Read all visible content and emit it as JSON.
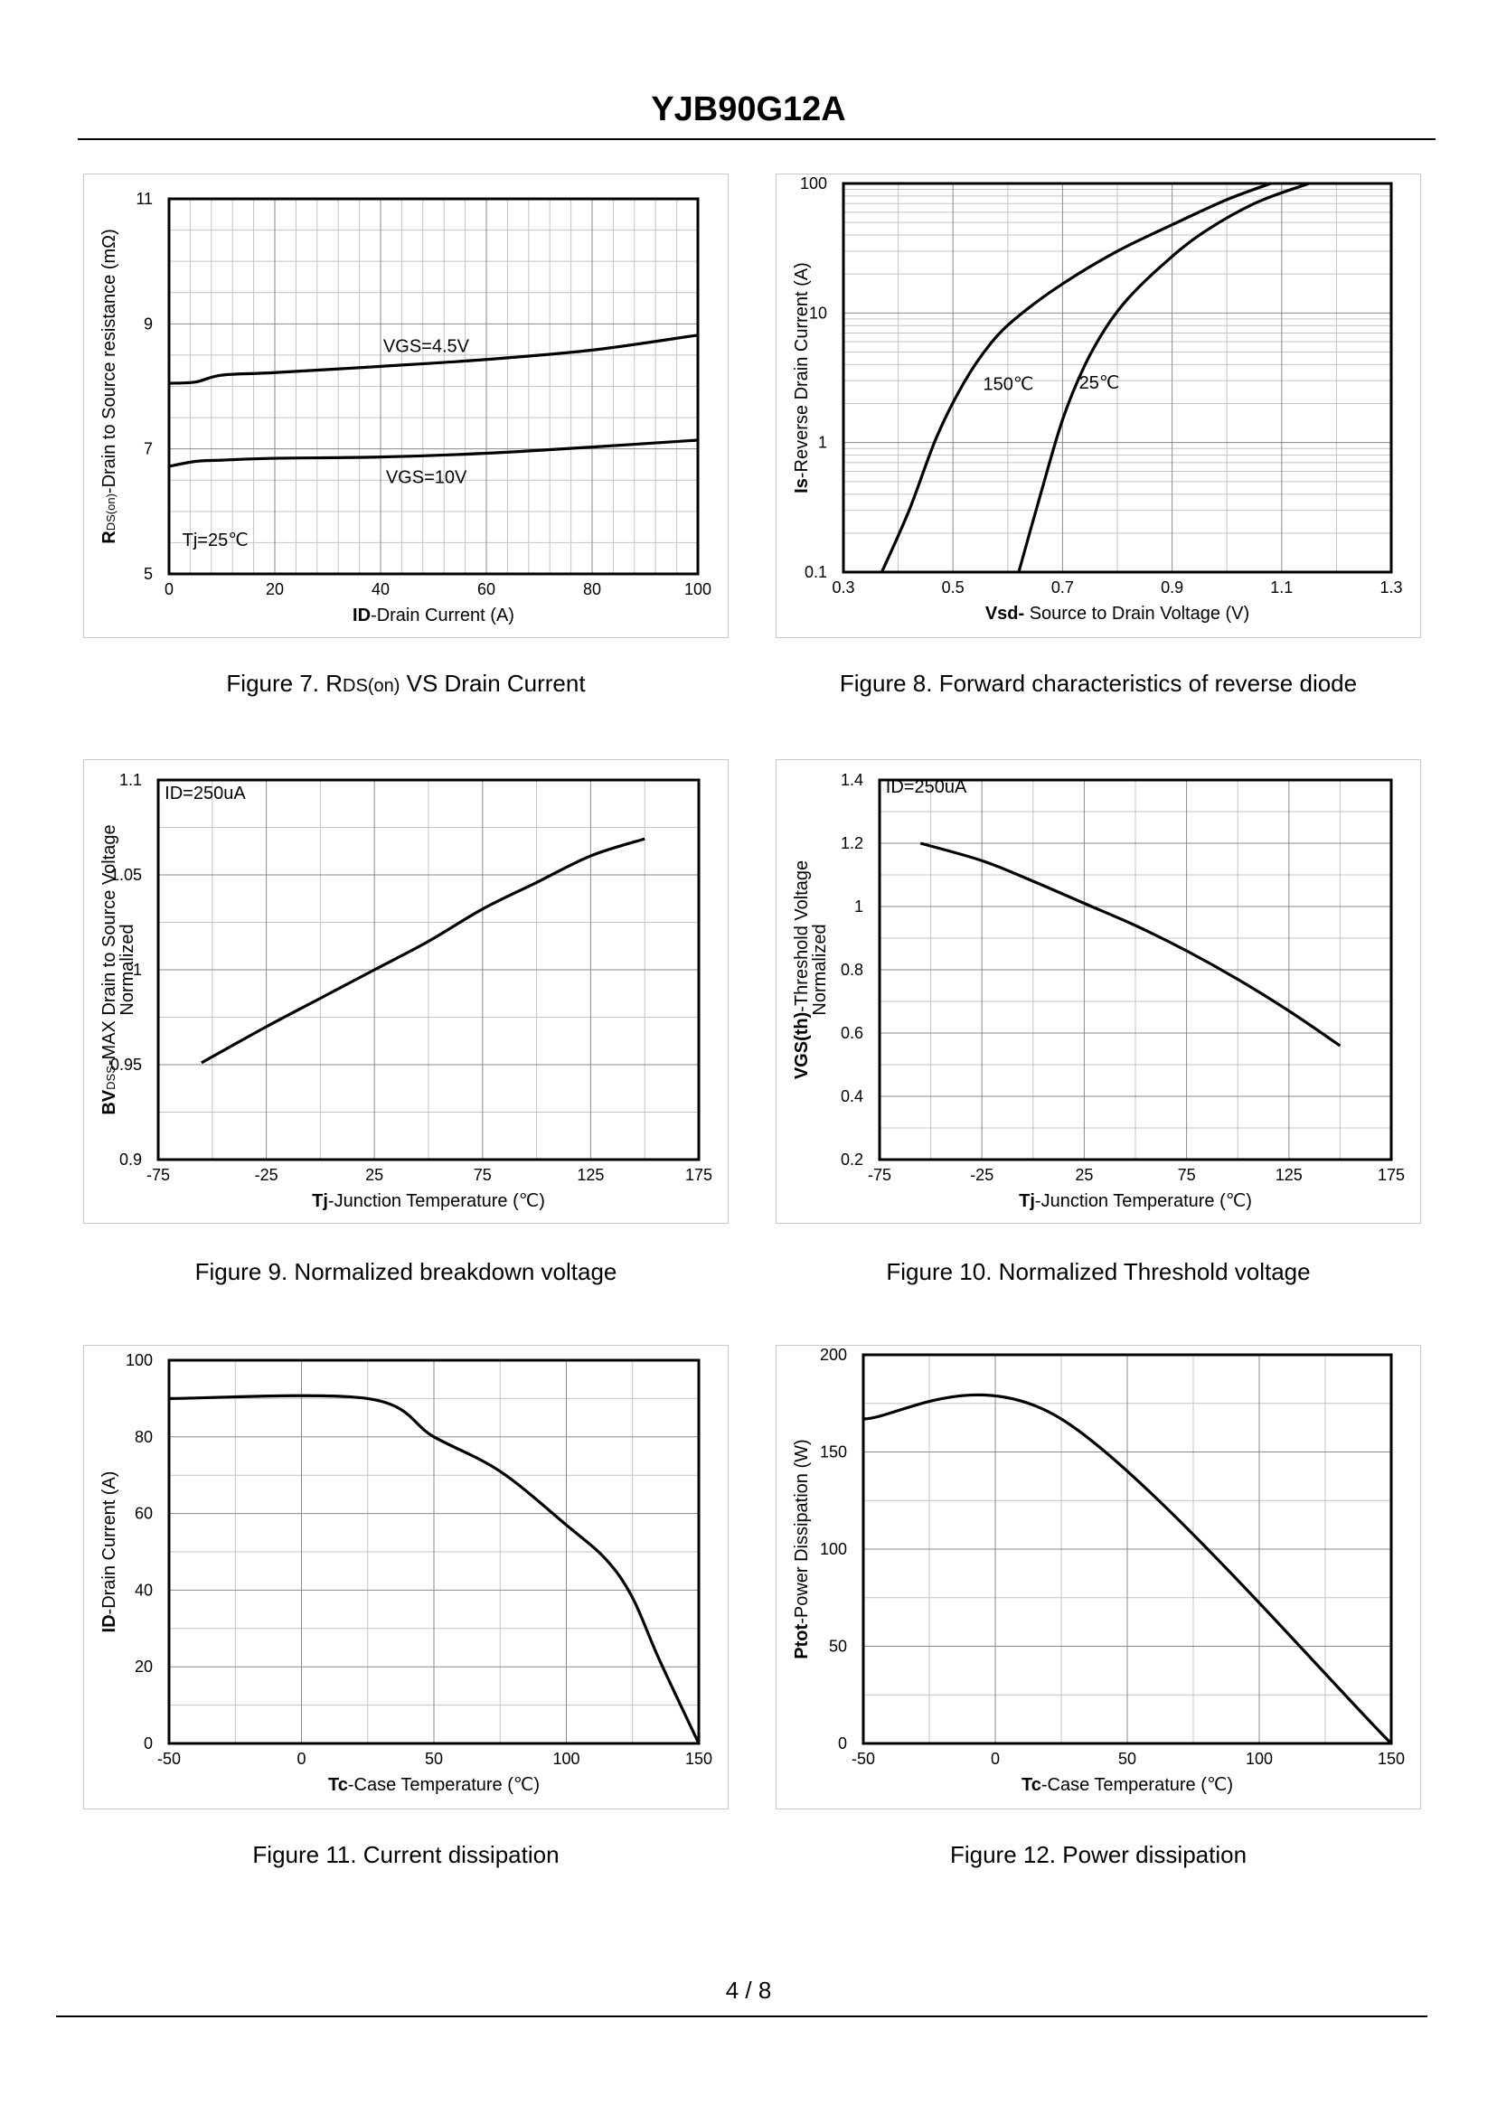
{
  "header": {
    "title": "YJB90G12A"
  },
  "footer": {
    "page": "4 / 8"
  },
  "captions": {
    "fig7_prefix": "Figure 7.  R",
    "fig7_sub": "DS(on)",
    "fig7_suffix": " VS Drain Current",
    "fig8": "Figure 8.  Forward characteristics of reverse diode",
    "fig9": "Figure 9.  Normalized breakdown voltage",
    "fig10": "Figure 10.  Normalized Threshold voltage",
    "fig11": "Figure 11.  Current dissipation",
    "fig12": "Figure 12.  Power dissipation"
  },
  "chart_data": [
    {
      "id": "fig7",
      "type": "line",
      "xlim": [
        0,
        100
      ],
      "ylim": [
        5,
        11
      ],
      "xticks": [
        0,
        20,
        40,
        60,
        80,
        100
      ],
      "yticks": [
        5,
        7,
        9,
        11
      ],
      "xticklabels": [
        "0",
        "20",
        "40",
        "60",
        "80",
        "100"
      ],
      "yticklabels": [
        "5",
        "7",
        "9",
        "11"
      ],
      "xminor": 5,
      "yminor": 4,
      "xlabel": {
        "bold": "ID",
        "rest": "-Drain Current (A)"
      },
      "ylabel": {
        "bold": "R",
        "sub": "DS(on)",
        "rest": "-Drain to Source resistance (mΩ)"
      },
      "ylabel_line2": "",
      "series": [
        {
          "name": "VGS=4.5V",
          "x": [
            0,
            5,
            10,
            20,
            40,
            60,
            80,
            100
          ],
          "y": [
            8.05,
            8.07,
            8.18,
            8.22,
            8.32,
            8.43,
            8.58,
            8.82
          ]
        },
        {
          "name": "VGS=10V",
          "x": [
            0,
            5,
            10,
            20,
            40,
            60,
            80,
            100
          ],
          "y": [
            6.72,
            6.8,
            6.82,
            6.85,
            6.87,
            6.93,
            7.03,
            7.14
          ]
        }
      ],
      "annotations": [
        {
          "text": "VGS=4.5V",
          "x": 40.5,
          "y": 8.55
        },
        {
          "text": "VGS=10V",
          "x": 41,
          "y": 6.45
        },
        {
          "text": "Tj=25℃",
          "x": 2.5,
          "y": 5.45
        }
      ]
    },
    {
      "id": "fig8",
      "type": "line",
      "yscale": "log",
      "xlim": [
        0.3,
        1.3
      ],
      "ylim": [
        0.1,
        100
      ],
      "xticks": [
        0.3,
        0.5,
        0.7,
        0.9,
        1.1,
        1.3
      ],
      "yticks": [
        0.1,
        1,
        10,
        100
      ],
      "xticklabels": [
        "0.3",
        "0.5",
        "0.7",
        "0.9",
        "1.1",
        "1.3"
      ],
      "yticklabels": [
        "0.1",
        "1",
        "10",
        "100"
      ],
      "xminor": 2,
      "xlabel": {
        "bold": "Vsd-",
        "rest": " Source to Drain Voltage (V)"
      },
      "ylabel": {
        "bold": "Is",
        "sub": "",
        "rest": "-Reverse  Drain Current (A)"
      },
      "ylabel_line2": "",
      "series": [
        {
          "name": "150℃",
          "x": [
            0.37,
            0.42,
            0.47,
            0.52,
            0.57,
            0.62,
            0.7,
            0.8,
            0.9,
            1.0,
            1.08
          ],
          "y": [
            0.1,
            0.3,
            1.1,
            2.9,
            5.9,
            9.5,
            16.8,
            30,
            48,
            75,
            100
          ]
        },
        {
          "name": "25℃",
          "x": [
            0.62,
            0.66,
            0.7,
            0.74,
            0.78,
            0.82,
            0.88,
            0.95,
            1.05,
            1.15
          ],
          "y": [
            0.1,
            0.4,
            1.5,
            3.9,
            7.8,
            13,
            23,
            40,
            70,
            100
          ]
        }
      ],
      "annotations": [
        {
          "text": "150℃",
          "x": 0.555,
          "y": 2.55
        },
        {
          "text": "25℃",
          "x": 0.73,
          "y": 2.6
        }
      ]
    },
    {
      "id": "fig9",
      "type": "line",
      "xlim": [
        -75,
        175
      ],
      "ylim": [
        0.9,
        1.1
      ],
      "xticks": [
        -75,
        -25,
        25,
        75,
        125,
        175
      ],
      "yticks": [
        0.9,
        0.95,
        1,
        1.05,
        1.1
      ],
      "xticklabels": [
        "-75",
        "-25",
        "25",
        "75",
        "125",
        "175"
      ],
      "yticklabels": [
        "0.9",
        "0.95",
        "1",
        "1.05",
        "1.1"
      ],
      "xminor": 2,
      "xlabel": {
        "bold": "Tj",
        "rest": "-Junction  Temperature (℃)"
      },
      "ylabel": {
        "bold": "BV",
        "sub": "DSS",
        "rest": "-MAX Drain to Source Voltage"
      },
      "ylabel_line2": "Normalized",
      "series": [
        {
          "name": "BVDSS",
          "x": [
            -55,
            -25,
            0,
            25,
            50,
            75,
            100,
            125,
            150
          ],
          "y": [
            0.951,
            0.97,
            0.985,
            1.0,
            1.015,
            1.032,
            1.046,
            1.06,
            1.069
          ]
        }
      ],
      "annotations": [
        {
          "text": "ID=250uA",
          "x": -72,
          "y": 1.09
        }
      ]
    },
    {
      "id": "fig10",
      "type": "line",
      "xlim": [
        -75,
        175
      ],
      "ylim": [
        0.2,
        1.4
      ],
      "xticks": [
        -75,
        -25,
        25,
        75,
        125,
        175
      ],
      "yticks": [
        0.2,
        0.4,
        0.6,
        0.8,
        1,
        1.2,
        1.4
      ],
      "xticklabels": [
        "-75",
        "-25",
        "25",
        "75",
        "125",
        "175"
      ],
      "yticklabels": [
        "0.2",
        "0.4",
        "0.6",
        "0.8",
        "1",
        "1.2",
        "1.4"
      ],
      "xminor": 2,
      "xlabel": {
        "bold": "Tj",
        "rest": "-Junction  Temperature (℃)"
      },
      "ylabel": {
        "bold": "VGS(th)",
        "sub": "",
        "rest": "-Threshold  Voltage"
      },
      "ylabel_line2": "Normalized",
      "series": [
        {
          "name": "VGS(th)",
          "x": [
            -55,
            -25,
            0,
            25,
            50,
            75,
            100,
            125,
            150
          ],
          "y": [
            1.2,
            1.145,
            1.08,
            1.01,
            0.94,
            0.86,
            0.77,
            0.67,
            0.56
          ]
        }
      ],
      "annotations": [
        {
          "text": "ID=250uA",
          "x": -72,
          "y": 1.36
        }
      ]
    },
    {
      "id": "fig11",
      "type": "line",
      "xlim": [
        -50,
        150
      ],
      "ylim": [
        0,
        100
      ],
      "xticks": [
        -50,
        0,
        50,
        100,
        150
      ],
      "yticks": [
        0,
        20,
        40,
        60,
        80,
        100
      ],
      "xticklabels": [
        "-50",
        "0",
        "50",
        "100",
        "150"
      ],
      "yticklabels": [
        "0",
        "20",
        "40",
        "60",
        "80",
        "100"
      ],
      "xminor": 2,
      "xlabel": {
        "bold": "Tc",
        "rest": "-Case Temperature (℃)"
      },
      "ylabel": {
        "bold": "ID",
        "sub": "",
        "rest": "-Drain Current (A)"
      },
      "ylabel_line2": "",
      "series": [
        {
          "name": "ID",
          "x": [
            -50,
            25,
            50,
            75,
            100,
            115,
            125,
            135,
            150
          ],
          "y": [
            90,
            90,
            80,
            71,
            57,
            48,
            38,
            22,
            0
          ]
        }
      ],
      "annotations": []
    },
    {
      "id": "fig12",
      "type": "line",
      "xlim": [
        -50,
        150
      ],
      "ylim": [
        0,
        200
      ],
      "xticks": [
        -50,
        0,
        50,
        100,
        150
      ],
      "yticks": [
        0,
        50,
        100,
        150,
        200
      ],
      "xticklabels": [
        "-50",
        "0",
        "50",
        "100",
        "150"
      ],
      "yticklabels": [
        "0",
        "50",
        "100",
        "150",
        "200"
      ],
      "xminor": 2,
      "xlabel": {
        "bold": "Tc",
        "rest": "-Case Temperature (℃)"
      },
      "ylabel": {
        "bold": "Ptot",
        "sub": "",
        "rest": "-Power Dissipation (W)"
      },
      "ylabel_line2": "",
      "series": [
        {
          "name": "Ptot",
          "x": [
            -50,
            25,
            150
          ],
          "y": [
            167,
            167,
            0
          ]
        }
      ],
      "annotations": []
    }
  ]
}
